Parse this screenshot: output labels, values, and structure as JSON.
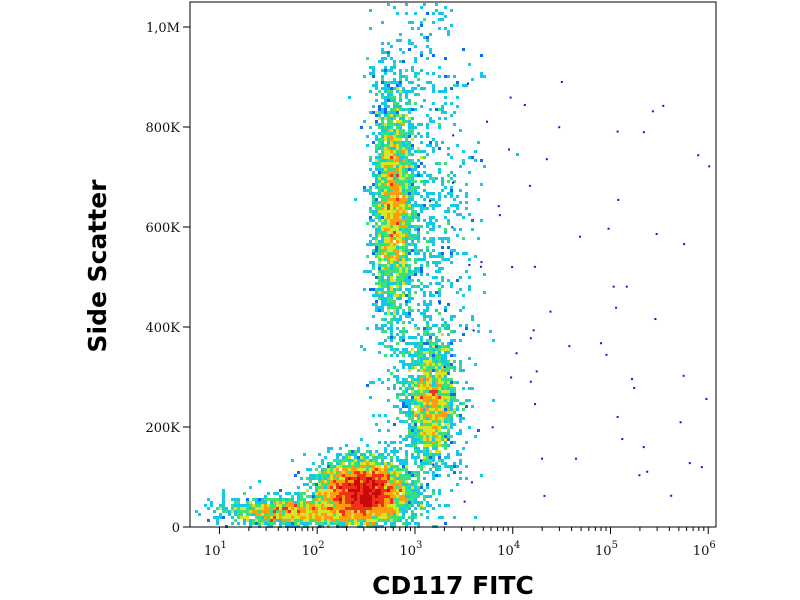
{
  "chart_data": {
    "type": "heatmap",
    "subtype": "flow-cytometry-density-scatter",
    "xlabel": "CD117 FITC",
    "ylabel": "Side Scatter",
    "x_scale": "log",
    "x_range": [
      5,
      1200000
    ],
    "y_scale": "linear",
    "y_range": [
      0,
      1050000
    ],
    "x_ticks": [
      {
        "base": "10",
        "exp": "1",
        "value": 10
      },
      {
        "base": "10",
        "exp": "2",
        "value": 100
      },
      {
        "base": "10",
        "exp": "3",
        "value": 1000
      },
      {
        "base": "10",
        "exp": "4",
        "value": 10000
      },
      {
        "base": "10",
        "exp": "5",
        "value": 100000
      },
      {
        "base": "10",
        "exp": "6",
        "value": 1000000
      }
    ],
    "y_ticks": [
      {
        "label": "0",
        "value": 0
      },
      {
        "label": "200K",
        "value": 200000
      },
      {
        "label": "400K",
        "value": 400000
      },
      {
        "label": "600K",
        "value": 600000
      },
      {
        "label": "800K",
        "value": 800000
      },
      {
        "label": "1,0M",
        "value": 1000000
      }
    ],
    "colormap": [
      "#0a1ad8",
      "#0f6af5",
      "#16c8e8",
      "#3ce07a",
      "#d4e625",
      "#ff9d0c",
      "#f0321a",
      "#c80a0a"
    ],
    "populations": [
      {
        "x_center": 300,
        "y_center": 70000,
        "x_spread_decades": 0.22,
        "y_spread": 30000,
        "weight": 1.0
      },
      {
        "x_center": 600,
        "y_center": 650000,
        "x_spread_decades": 0.1,
        "y_spread": 120000,
        "weight": 0.55
      },
      {
        "x_center": 1500,
        "y_center": 250000,
        "x_spread_decades": 0.12,
        "y_spread": 60000,
        "weight": 0.35
      },
      {
        "x_center": 1200,
        "y_center": 500000,
        "x_spread_decades": 0.25,
        "y_spread": 300000,
        "weight": 0.25
      },
      {
        "x_center": 60,
        "y_center": 30000,
        "x_spread_decades": 0.35,
        "y_spread": 15000,
        "weight": 0.3
      }
    ]
  }
}
